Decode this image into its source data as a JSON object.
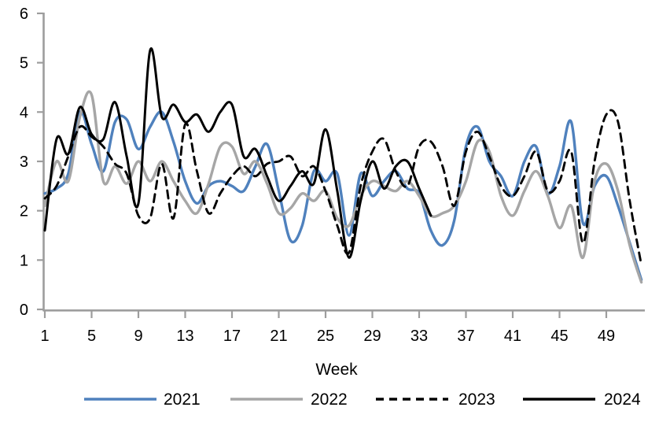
{
  "chart_data": {
    "type": "line",
    "title": "",
    "xlabel": "Week",
    "ylabel": "",
    "x_range": [
      1,
      52
    ],
    "x_ticks": [
      1,
      5,
      9,
      13,
      17,
      21,
      25,
      29,
      33,
      37,
      41,
      45,
      49
    ],
    "ylim": [
      0,
      6
    ],
    "y_ticks": [
      0,
      1,
      2,
      3,
      4,
      5,
      6
    ],
    "grid": false,
    "legend_position": "bottom",
    "axis_color": "#9d9d9d",
    "text_color": "#000000",
    "background": "#ffffff",
    "series": [
      {
        "name": "2021",
        "color": "#4f81bd",
        "style": "solid",
        "start_week": 1,
        "values": [
          2.35,
          2.45,
          2.75,
          4.0,
          3.35,
          2.8,
          3.8,
          3.85,
          3.25,
          3.7,
          4.0,
          3.4,
          2.6,
          2.15,
          2.5,
          2.6,
          2.5,
          2.4,
          2.9,
          3.35,
          2.4,
          1.4,
          1.7,
          2.8,
          2.6,
          2.75,
          1.5,
          2.75,
          2.3,
          2.6,
          2.8,
          2.45,
          2.35,
          1.6,
          1.3,
          1.8,
          3.3,
          3.7,
          3.0,
          2.7,
          2.3,
          3.0,
          3.3,
          2.35,
          2.9,
          3.8,
          1.75,
          2.5,
          2.7,
          2.1,
          1.35,
          0.6
        ]
      },
      {
        "name": "2022",
        "color": "#a6a6a6",
        "style": "solid",
        "start_week": 1,
        "values": [
          2.1,
          3.0,
          2.6,
          3.9,
          4.35,
          2.6,
          2.9,
          2.55,
          3.0,
          2.6,
          3.0,
          2.6,
          2.2,
          1.95,
          2.55,
          3.3,
          3.3,
          2.75,
          3.0,
          2.55,
          1.95,
          2.05,
          2.35,
          2.2,
          2.4,
          1.85,
          1.7,
          2.3,
          2.6,
          2.5,
          2.4,
          2.6,
          2.3,
          1.9,
          1.95,
          2.1,
          2.6,
          3.4,
          3.2,
          2.3,
          1.9,
          2.4,
          2.8,
          2.3,
          1.65,
          2.1,
          1.05,
          2.6,
          2.95,
          2.4,
          1.3,
          0.55
        ]
      },
      {
        "name": "2023",
        "color": "#000000",
        "style": "dashed",
        "start_week": 1,
        "values": [
          2.25,
          2.5,
          3.1,
          3.7,
          3.5,
          3.3,
          2.95,
          2.75,
          1.9,
          1.85,
          2.95,
          1.85,
          3.75,
          2.8,
          1.95,
          2.35,
          2.7,
          2.9,
          2.7,
          2.95,
          3.0,
          3.1,
          2.7,
          2.9,
          2.4,
          1.7,
          1.15,
          2.5,
          3.2,
          3.45,
          2.8,
          2.5,
          3.3,
          3.4,
          2.9,
          2.1,
          3.2,
          3.6,
          3.1,
          2.5,
          2.3,
          2.7,
          3.2,
          2.4,
          2.6,
          3.2,
          1.35,
          3.0,
          3.95,
          3.8,
          2.2,
          0.9
        ]
      },
      {
        "name": "2024",
        "color": "#000000",
        "style": "solid",
        "start_week": 1,
        "values": [
          1.6,
          3.45,
          3.15,
          4.1,
          3.55,
          3.45,
          4.2,
          3.1,
          2.15,
          5.25,
          3.9,
          4.15,
          3.8,
          3.95,
          3.6,
          4.0,
          4.15,
          3.1,
          3.25,
          2.7,
          2.2,
          2.5,
          2.8,
          2.55,
          3.65,
          2.4,
          1.05,
          2.2,
          3.0,
          2.45,
          2.9,
          3.0,
          2.45,
          1.9
        ]
      }
    ]
  }
}
